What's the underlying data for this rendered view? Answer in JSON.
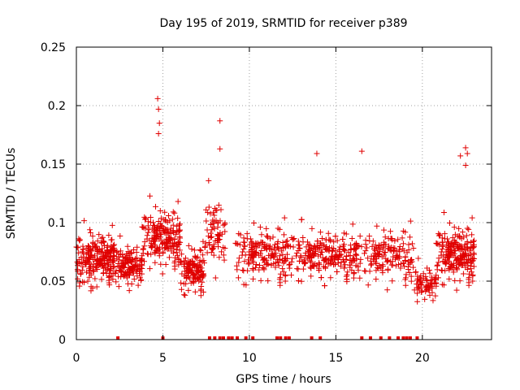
{
  "chart_data": {
    "type": "scatter",
    "title": "Day 195 of 2019, SRMTID for receiver p389",
    "xlabel": "GPS time / hours",
    "ylabel": "SRMTID / TECUs",
    "xlim": [
      0,
      24
    ],
    "ylim": [
      0,
      0.25
    ],
    "x_ticks": [
      0,
      5,
      10,
      15,
      20
    ],
    "x_tick_labels": [
      "0",
      "5",
      "10",
      "15",
      "20"
    ],
    "y_ticks": [
      0,
      0.05,
      0.1,
      0.15,
      0.2,
      0.25
    ],
    "y_tick_labels": [
      "0",
      "0.05",
      "0.1",
      "0.15",
      "0.2",
      "0.25"
    ],
    "grid": true,
    "marker": "plus",
    "series_color": "#e00000",
    "zero_value_x": [
      2.4,
      5.0,
      7.7,
      8.0,
      8.3,
      8.5,
      8.8,
      9.0,
      9.3,
      9.8,
      10.2,
      11.6,
      11.8,
      12.1,
      12.3,
      13.6,
      14.1,
      16.5,
      17.0,
      17.6,
      18.1,
      18.6,
      18.9,
      19.1,
      19.3,
      19.7
    ],
    "peaks": [
      {
        "x": 4.7,
        "y": 0.206
      },
      {
        "x": 4.75,
        "y": 0.197
      },
      {
        "x": 4.8,
        "y": 0.185
      },
      {
        "x": 4.75,
        "y": 0.176
      },
      {
        "x": 8.3,
        "y": 0.187
      },
      {
        "x": 8.3,
        "y": 0.163
      },
      {
        "x": 13.9,
        "y": 0.159
      },
      {
        "x": 16.5,
        "y": 0.161
      },
      {
        "x": 22.5,
        "y": 0.164
      },
      {
        "x": 22.6,
        "y": 0.159
      },
      {
        "x": 22.2,
        "y": 0.157
      },
      {
        "x": 22.5,
        "y": 0.149
      }
    ],
    "clusters": [
      {
        "x0": 0.0,
        "x1": 2.2,
        "mean": 0.067,
        "sd": 0.017,
        "n": 230
      },
      {
        "x0": 2.2,
        "x1": 3.8,
        "mean": 0.06,
        "sd": 0.014,
        "n": 140
      },
      {
        "x0": 3.8,
        "x1": 6.0,
        "mean": 0.082,
        "sd": 0.02,
        "n": 200
      },
      {
        "x0": 6.0,
        "x1": 7.4,
        "mean": 0.055,
        "sd": 0.016,
        "n": 130
      },
      {
        "x0": 7.4,
        "x1": 8.6,
        "mean": 0.085,
        "sd": 0.025,
        "n": 70
      },
      {
        "x0": 9.2,
        "x1": 12.2,
        "mean": 0.068,
        "sd": 0.02,
        "n": 180
      },
      {
        "x0": 12.2,
        "x1": 16.2,
        "mean": 0.068,
        "sd": 0.017,
        "n": 300
      },
      {
        "x0": 16.2,
        "x1": 19.5,
        "mean": 0.067,
        "sd": 0.019,
        "n": 160
      },
      {
        "x0": 19.5,
        "x1": 20.8,
        "mean": 0.045,
        "sd": 0.012,
        "n": 70
      },
      {
        "x0": 20.8,
        "x1": 23.0,
        "mean": 0.068,
        "sd": 0.02,
        "n": 220
      }
    ]
  }
}
